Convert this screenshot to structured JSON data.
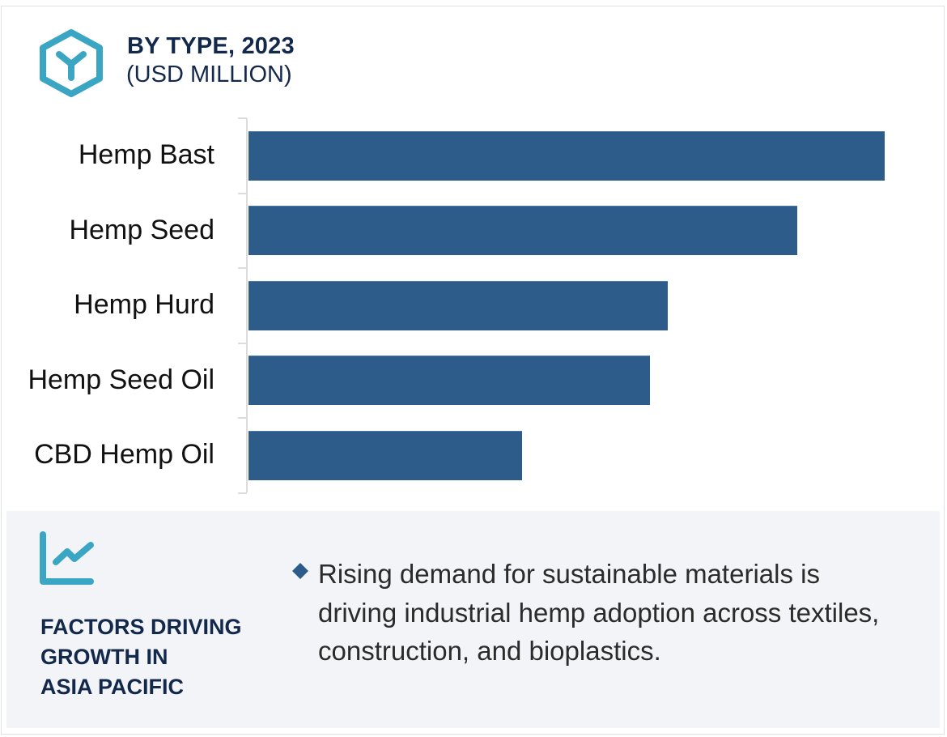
{
  "header": {
    "icon": "hexagon-y-icon",
    "title": "BY TYPE, 2023",
    "subtitle": "(USD MILLION)"
  },
  "colors": {
    "bar": "#2d5c8a",
    "title": "#13294b",
    "accent_icon": "#3aa6c4",
    "panel_bg": "#f3f4f8",
    "bullet": "#2d5c8a"
  },
  "chart_data": {
    "type": "bar",
    "orientation": "horizontal",
    "title": "BY TYPE, 2023",
    "subtitle": "(USD MILLION)",
    "xlabel": "",
    "ylabel": "",
    "categories": [
      "Hemp Bast",
      "Hemp Seed",
      "Hemp Hurd",
      "Hemp Seed Oil",
      "CBD Hemp Oil"
    ],
    "values": [
      100,
      86.3,
      65.9,
      63.1,
      43.0
    ],
    "value_note": "relative bar lengths (no value axis shown); Hemp Bast = 100",
    "grid": false,
    "legend": null,
    "xlim": [
      0,
      100
    ]
  },
  "factors": {
    "icon": "trend-chart-icon",
    "title_lines": [
      "FACTORS DRIVING",
      "GROWTH IN",
      "ASIA PACIFIC"
    ],
    "bullets": [
      {
        "icon": "diamond-bullet-icon",
        "text": "Rising demand for sustainable materials is driving industrial hemp adoption across textiles, construction, and bioplastics."
      }
    ]
  }
}
